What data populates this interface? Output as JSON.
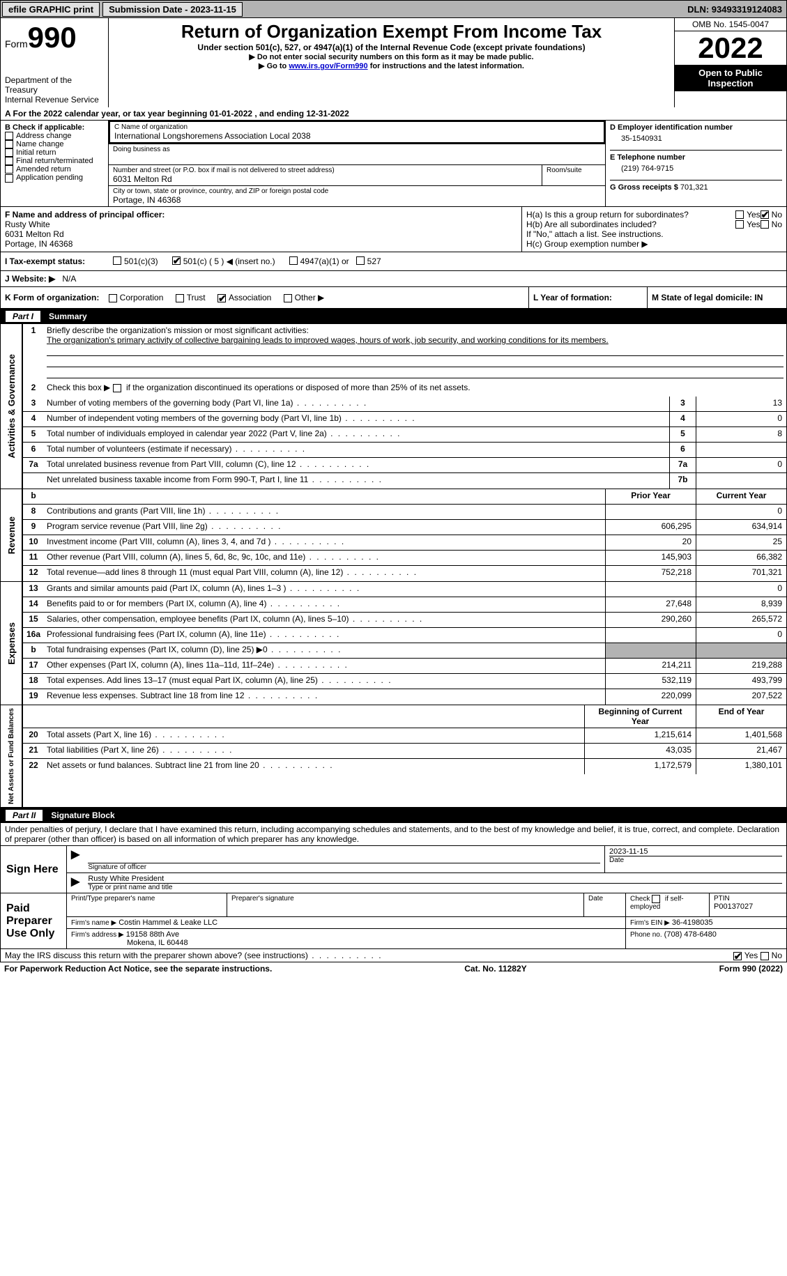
{
  "topbar": {
    "efile": "efile GRAPHIC print",
    "submission_label": "Submission Date - 2023-11-15",
    "dln_label": "DLN: 93493319124083"
  },
  "header": {
    "form_label": "Form",
    "form_number": "990",
    "dept": "Department of the Treasury",
    "irs": "Internal Revenue Service",
    "title": "Return of Organization Exempt From Income Tax",
    "subtitle1": "Under section 501(c), 527, or 4947(a)(1) of the Internal Revenue Code (except private foundations)",
    "subtitle2": "▶ Do not enter social security numbers on this form as it may be made public.",
    "subtitle3_pre": "▶ Go to ",
    "subtitle3_link": "www.irs.gov/Form990",
    "subtitle3_post": " for instructions and the latest information.",
    "omb": "OMB No. 1545-0047",
    "year": "2022",
    "open": "Open to Public Inspection"
  },
  "line_a": "A  For the 2022 calendar year, or tax year beginning 01-01-2022    , and ending 12-31-2022",
  "section_b": {
    "title": "B Check if applicable:",
    "items": [
      "Address change",
      "Name change",
      "Initial return",
      "Final return/terminated",
      "Amended return",
      "Application pending"
    ]
  },
  "section_c": {
    "name_label": "C Name of organization",
    "name": "International Longshoremens Association Local 2038",
    "dba_label": "Doing business as",
    "addr_label": "Number and street (or P.O. box if mail is not delivered to street address)",
    "room_label": "Room/suite",
    "addr": "6031 Melton Rd",
    "city_label": "City or town, state or province, country, and ZIP or foreign postal code",
    "city": "Portage, IN   46368"
  },
  "section_d": {
    "label": "D Employer identification number",
    "val": "35-1540931"
  },
  "section_e": {
    "label": "E Telephone number",
    "val": "(219) 764-9715"
  },
  "section_g": {
    "label": "G Gross receipts $ ",
    "val": "701,321"
  },
  "section_f": {
    "label": "F  Name and address of principal officer:",
    "name": "Rusty White",
    "addr1": "6031 Melton Rd",
    "addr2": "Portage, IN   46368"
  },
  "section_h": {
    "a": "H(a)   Is this a group return for subordinates?",
    "b": "H(b)   Are all subordinates included?",
    "no_note": "If \"No,\" attach a list. See instructions.",
    "c": "H(c)   Group exemption number ▶",
    "yes": "Yes",
    "no": "No"
  },
  "section_i": {
    "label": "I   Tax-exempt status:",
    "c3": "501(c)(3)",
    "c_num": "501(c) ( 5 ) ◀ (insert no.)",
    "a1": "4947(a)(1) or",
    "s527": "527"
  },
  "section_j": {
    "label": "J   Website: ▶",
    "val": "N/A"
  },
  "section_k": {
    "label": "K Form of organization:",
    "corp": "Corporation",
    "trust": "Trust",
    "assoc": "Association",
    "other": "Other ▶"
  },
  "section_l": {
    "label": "L Year of formation:"
  },
  "section_m": {
    "label": "M State of legal domicile: IN"
  },
  "part1": {
    "label": "Part I",
    "title": "Summary"
  },
  "summary": {
    "q1_label": "1",
    "q1": "Briefly describe the organization's mission or most significant activities:",
    "q1_text": "The organization's primary activity of collective bargaining leads to improved wages, hours of work, job security, and working conditions for its members.",
    "q2_label": "2",
    "q2": "Check this box ▶        if the organization discontinued its operations or disposed of more than 25% of its net assets.",
    "rows_gov": [
      {
        "n": "3",
        "d": "Number of voting members of the governing body (Part VI, line 1a)",
        "box": "3",
        "v": "13"
      },
      {
        "n": "4",
        "d": "Number of independent voting members of the governing body (Part VI, line 1b)",
        "box": "4",
        "v": "0"
      },
      {
        "n": "5",
        "d": "Total number of individuals employed in calendar year 2022 (Part V, line 2a)",
        "box": "5",
        "v": "8"
      },
      {
        "n": "6",
        "d": "Total number of volunteers (estimate if necessary)",
        "box": "6",
        "v": ""
      },
      {
        "n": "7a",
        "d": "Total unrelated business revenue from Part VIII, column (C), line 12",
        "box": "7a",
        "v": "0"
      },
      {
        "n": "",
        "d": "Net unrelated business taxable income from Form 990-T, Part I, line 11",
        "box": "7b",
        "v": ""
      }
    ],
    "col_prior": "Prior Year",
    "col_current": "Current Year",
    "b_label": "b",
    "rows_rev": [
      {
        "n": "8",
        "d": "Contributions and grants (Part VIII, line 1h)",
        "p": "",
        "c": "0"
      },
      {
        "n": "9",
        "d": "Program service revenue (Part VIII, line 2g)",
        "p": "606,295",
        "c": "634,914"
      },
      {
        "n": "10",
        "d": "Investment income (Part VIII, column (A), lines 3, 4, and 7d )",
        "p": "20",
        "c": "25"
      },
      {
        "n": "11",
        "d": "Other revenue (Part VIII, column (A), lines 5, 6d, 8c, 9c, 10c, and 11e)",
        "p": "145,903",
        "c": "66,382"
      },
      {
        "n": "12",
        "d": "Total revenue—add lines 8 through 11 (must equal Part VIII, column (A), line 12)",
        "p": "752,218",
        "c": "701,321"
      }
    ],
    "rows_exp": [
      {
        "n": "13",
        "d": "Grants and similar amounts paid (Part IX, column (A), lines 1–3 )",
        "p": "",
        "c": "0"
      },
      {
        "n": "14",
        "d": "Benefits paid to or for members (Part IX, column (A), line 4)",
        "p": "27,648",
        "c": "8,939"
      },
      {
        "n": "15",
        "d": "Salaries, other compensation, employee benefits (Part IX, column (A), lines 5–10)",
        "p": "290,260",
        "c": "265,572"
      },
      {
        "n": "16a",
        "d": "Professional fundraising fees (Part IX, column (A), line 11e)",
        "p": "",
        "c": "0"
      },
      {
        "n": "b",
        "d": "Total fundraising expenses (Part IX, column (D), line 25) ▶0",
        "p": "shade",
        "c": "shade"
      },
      {
        "n": "17",
        "d": "Other expenses (Part IX, column (A), lines 11a–11d, 11f–24e)",
        "p": "214,211",
        "c": "219,288"
      },
      {
        "n": "18",
        "d": "Total expenses. Add lines 13–17 (must equal Part IX, column (A), line 25)",
        "p": "532,119",
        "c": "493,799"
      },
      {
        "n": "19",
        "d": "Revenue less expenses. Subtract line 18 from line 12",
        "p": "220,099",
        "c": "207,522"
      }
    ],
    "col_begin": "Beginning of Current Year",
    "col_end": "End of Year",
    "rows_net": [
      {
        "n": "20",
        "d": "Total assets (Part X, line 16)",
        "p": "1,215,614",
        "c": "1,401,568"
      },
      {
        "n": "21",
        "d": "Total liabilities (Part X, line 26)",
        "p": "43,035",
        "c": "21,467"
      },
      {
        "n": "22",
        "d": "Net assets or fund balances. Subtract line 21 from line 20",
        "p": "1,172,579",
        "c": "1,380,101"
      }
    ],
    "side_gov": "Activities & Governance",
    "side_rev": "Revenue",
    "side_exp": "Expenses",
    "side_net": "Net Assets or Fund Balances"
  },
  "part2": {
    "label": "Part II",
    "title": "Signature Block"
  },
  "sig": {
    "penalty": "Under penalties of perjury, I declare that I have examined this return, including accompanying schedules and statements, and to the best of my knowledge and belief, it is true, correct, and complete. Declaration of preparer (other than officer) is based on all information of which preparer has any knowledge.",
    "sign_here": "Sign Here",
    "sig_officer": "Signature of officer",
    "date_label": "Date",
    "sig_date": "2023-11-15",
    "name_title": "Rusty White  President",
    "type_name": "Type or print name and title",
    "paid": "Paid Preparer Use Only",
    "prep_name_label": "Print/Type preparer's name",
    "prep_sig_label": "Preparer's signature",
    "check_self": "Check          if self-employed",
    "ptin_label": "PTIN",
    "ptin": "P00137027",
    "firm_name_label": "Firm's name    ▶",
    "firm_name": "Costin Hammel & Leake LLC",
    "firm_ein_label": "Firm's EIN ▶",
    "firm_ein": "36-4198035",
    "firm_addr_label": "Firm's address ▶",
    "firm_addr1": "19158 88th Ave",
    "firm_addr2": "Mokena, IL   60448",
    "phone_label": "Phone no.",
    "phone": "(708) 478-6480"
  },
  "discuss": {
    "text": "May the IRS discuss this return with the preparer shown above? (see instructions)",
    "yes": "Yes",
    "no": "No"
  },
  "footer": {
    "pra": "For Paperwork Reduction Act Notice, see the separate instructions.",
    "cat": "Cat. No. 11282Y",
    "form": "Form 990 (2022)"
  },
  "colors": {
    "shade": "#b3b3b3",
    "black": "#000000",
    "link": "#0000cc"
  }
}
